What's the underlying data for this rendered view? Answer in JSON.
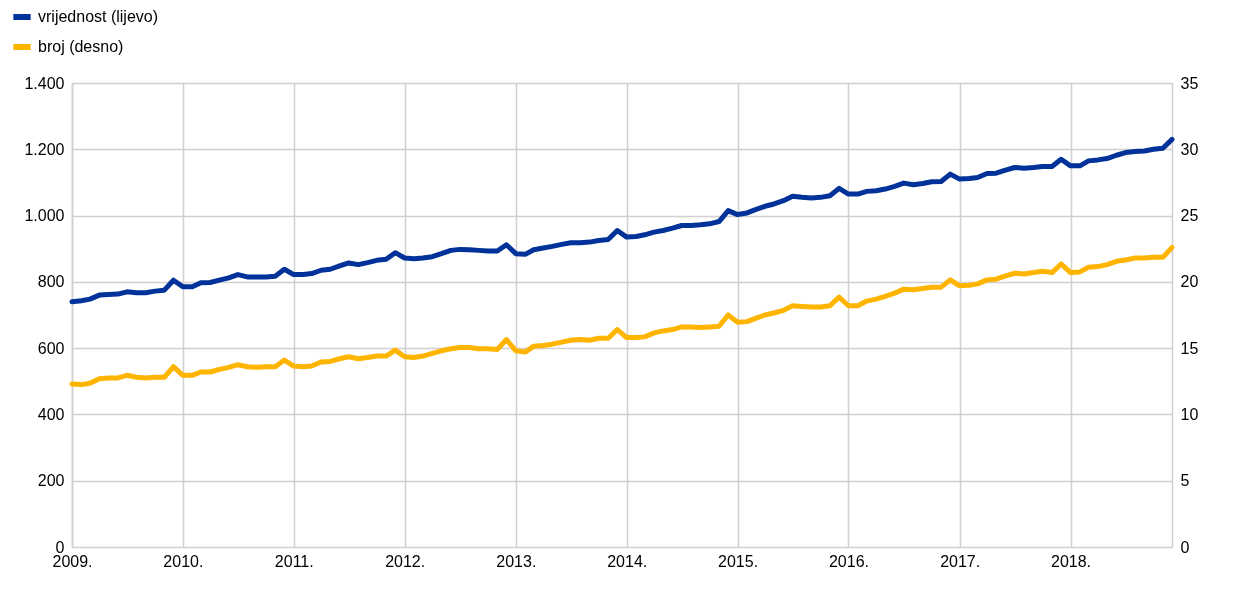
{
  "chart_data": {
    "type": "line",
    "x": [
      "2009-01",
      "2009-02",
      "2009-03",
      "2009-04",
      "2009-05",
      "2009-06",
      "2009-07",
      "2009-08",
      "2009-09",
      "2009-10",
      "2009-11",
      "2009-12",
      "2010-01",
      "2010-02",
      "2010-03",
      "2010-04",
      "2010-05",
      "2010-06",
      "2010-07",
      "2010-08",
      "2010-09",
      "2010-10",
      "2010-11",
      "2010-12",
      "2011-01",
      "2011-02",
      "2011-03",
      "2011-04",
      "2011-05",
      "2011-06",
      "2011-07",
      "2011-08",
      "2011-09",
      "2011-10",
      "2011-11",
      "2011-12",
      "2012-01",
      "2012-02",
      "2012-03",
      "2012-04",
      "2012-05",
      "2012-06",
      "2012-07",
      "2012-08",
      "2012-09",
      "2012-10",
      "2012-11",
      "2012-12",
      "2013-01",
      "2013-02",
      "2013-03",
      "2013-04",
      "2013-05",
      "2013-06",
      "2013-07",
      "2013-08",
      "2013-09",
      "2013-10",
      "2013-11",
      "2013-12",
      "2014-01",
      "2014-02",
      "2014-03",
      "2014-04",
      "2014-05",
      "2014-06",
      "2014-07",
      "2014-08",
      "2014-09",
      "2014-10",
      "2014-11",
      "2014-12",
      "2015-01",
      "2015-02",
      "2015-03",
      "2015-04",
      "2015-05",
      "2015-06",
      "2015-07",
      "2015-08",
      "2015-09",
      "2015-10",
      "2015-11",
      "2015-12",
      "2016-01",
      "2016-02",
      "2016-03",
      "2016-04",
      "2016-05",
      "2016-06",
      "2016-07",
      "2016-08",
      "2016-09",
      "2016-10",
      "2016-11",
      "2016-12",
      "2017-01",
      "2017-02",
      "2017-03",
      "2017-04",
      "2017-05",
      "2017-06",
      "2017-07",
      "2017-08",
      "2017-09",
      "2017-10",
      "2017-11",
      "2017-12",
      "2018-01",
      "2018-02",
      "2018-03",
      "2018-04",
      "2018-05",
      "2018-06",
      "2018-07",
      "2018-08",
      "2018-09",
      "2018-10",
      "2018-11",
      "2018-12"
    ],
    "series": [
      {
        "name": "vrijednost (lijevo)",
        "color": "#003299",
        "values": [
          740,
          743,
          748,
          760,
          762,
          763,
          770,
          767,
          767,
          772,
          775,
          805,
          785,
          785,
          797,
          798,
          805,
          812,
          822,
          815,
          815,
          815,
          817,
          838,
          822,
          822,
          825,
          835,
          838,
          848,
          857,
          852,
          858,
          865,
          868,
          888,
          872,
          870,
          872,
          876,
          885,
          895,
          898,
          897,
          895,
          893,
          893,
          912,
          885,
          883,
          897,
          902,
          907,
          913,
          918,
          918,
          920,
          925,
          928,
          955,
          935,
          937,
          942,
          950,
          955,
          962,
          970,
          970,
          972,
          975,
          982,
          1015,
          1003,
          1008,
          1018,
          1028,
          1035,
          1045,
          1058,
          1055,
          1053,
          1055,
          1060,
          1082,
          1065,
          1065,
          1073,
          1075,
          1080,
          1088,
          1098,
          1093,
          1097,
          1102,
          1103,
          1125,
          1110,
          1112,
          1115,
          1127,
          1128,
          1137,
          1145,
          1143,
          1145,
          1148,
          1148,
          1170,
          1150,
          1150,
          1165,
          1168,
          1172,
          1182,
          1190,
          1193,
          1195,
          1200,
          1203,
          1230
        ]
      },
      {
        "name": "broj (desno)",
        "color": "#ffb400",
        "axis": "y2",
        "values": [
          12.3,
          12.25,
          12.35,
          12.7,
          12.75,
          12.75,
          12.95,
          12.8,
          12.75,
          12.8,
          12.8,
          13.6,
          12.95,
          12.95,
          13.2,
          13.2,
          13.4,
          13.55,
          13.75,
          13.6,
          13.55,
          13.6,
          13.6,
          14.1,
          13.65,
          13.6,
          13.65,
          13.95,
          14.0,
          14.2,
          14.35,
          14.2,
          14.3,
          14.4,
          14.4,
          14.85,
          14.35,
          14.3,
          14.4,
          14.6,
          14.8,
          14.95,
          15.05,
          15.05,
          14.95,
          14.95,
          14.9,
          15.65,
          14.8,
          14.7,
          15.15,
          15.2,
          15.3,
          15.45,
          15.6,
          15.65,
          15.6,
          15.75,
          15.75,
          16.4,
          15.8,
          15.8,
          15.85,
          16.15,
          16.3,
          16.4,
          16.6,
          16.6,
          16.55,
          16.6,
          16.65,
          17.5,
          16.95,
          17.0,
          17.25,
          17.5,
          17.65,
          17.85,
          18.2,
          18.15,
          18.1,
          18.1,
          18.2,
          18.85,
          18.2,
          18.2,
          18.55,
          18.7,
          18.9,
          19.15,
          19.45,
          19.4,
          19.5,
          19.6,
          19.6,
          20.15,
          19.7,
          19.75,
          19.85,
          20.15,
          20.2,
          20.45,
          20.65,
          20.6,
          20.7,
          20.8,
          20.7,
          21.35,
          20.7,
          20.75,
          21.1,
          21.15,
          21.3,
          21.55,
          21.65,
          21.8,
          21.8,
          21.85,
          21.85,
          22.6
        ]
      }
    ],
    "xlim": [
      "2009-01",
      "2018-12"
    ],
    "xticks": [
      {
        "value": "2009-01",
        "label": "2009."
      },
      {
        "value": "2010-01",
        "label": "2010."
      },
      {
        "value": "2011-01",
        "label": "2011."
      },
      {
        "value": "2012-01",
        "label": "2012."
      },
      {
        "value": "2013-01",
        "label": "2013."
      },
      {
        "value": "2014-01",
        "label": "2014."
      },
      {
        "value": "2015-01",
        "label": "2015."
      },
      {
        "value": "2016-01",
        "label": "2016."
      },
      {
        "value": "2017-01",
        "label": "2017."
      },
      {
        "value": "2018-01",
        "label": "2018."
      }
    ],
    "ylim": [
      0,
      1400
    ],
    "yticks": [
      0,
      200,
      400,
      600,
      800,
      {
        "value": 1000,
        "label": "1.000"
      },
      {
        "value": 1200,
        "label": "1.200"
      },
      {
        "value": 1400,
        "label": "1.400"
      }
    ],
    "y2lim": [
      0,
      35
    ],
    "y2ticks": [
      0,
      5,
      10,
      15,
      20,
      25,
      30,
      35
    ],
    "grid": true,
    "legend": "top left",
    "line_style": "solid",
    "marker": "none"
  }
}
